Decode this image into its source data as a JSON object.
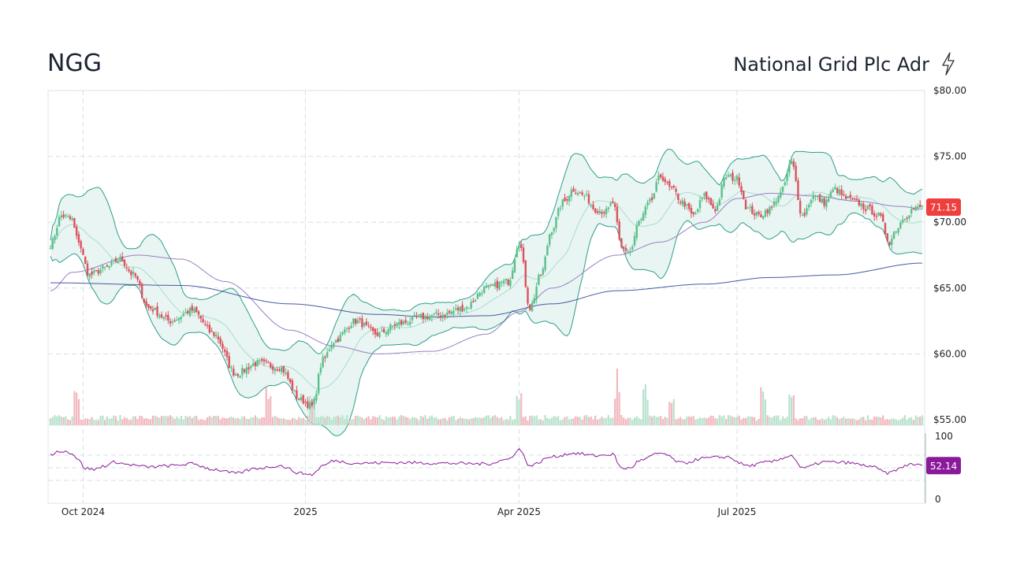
{
  "header": {
    "ticker": "NGG",
    "company": "National Grid Plc Adr",
    "icon": "lightning-bolt-icon"
  },
  "colors": {
    "up": "#5bbf8a",
    "down": "#d9525e",
    "band_fill": "#e8f5f2",
    "band_line": "#2e9e8a",
    "ma_short": "#9b7ec4",
    "ma_long": "#4a58a0",
    "rsi": "#8b1a9a",
    "price_badge": "#ef3e3e",
    "rsi_badge": "#8b1a9a"
  },
  "chart_data": {
    "type": "candlestick",
    "price_axis": {
      "ticks": [
        "$80.00",
        "$75.00",
        "$70.00",
        "$65.00",
        "$60.00",
        "$55.00"
      ],
      "values": [
        80,
        75,
        70,
        65,
        60,
        55
      ],
      "ylim": [
        55,
        80
      ]
    },
    "x_labels": [
      "Oct 2024",
      "2025",
      "Apr 2025",
      "Jul 2025"
    ],
    "last_price": "71.15",
    "rsi": {
      "ticks": [
        "100",
        "0"
      ],
      "last": "52.14",
      "ylim": [
        0,
        100
      ]
    },
    "price_anchors": [
      [
        0,
        68.3
      ],
      [
        5,
        70.5
      ],
      [
        10,
        70.2
      ],
      [
        12,
        68.8
      ],
      [
        18,
        66.0
      ],
      [
        25,
        66.5
      ],
      [
        32,
        67.2
      ],
      [
        38,
        66.0
      ],
      [
        45,
        63.5
      ],
      [
        55,
        62.5
      ],
      [
        65,
        63.3
      ],
      [
        75,
        61.5
      ],
      [
        85,
        58.5
      ],
      [
        95,
        59.3
      ],
      [
        105,
        59.0
      ],
      [
        115,
        56.5
      ],
      [
        120,
        56.0
      ],
      [
        125,
        59.5
      ],
      [
        130,
        61.0
      ],
      [
        140,
        62.5
      ],
      [
        150,
        61.5
      ],
      [
        160,
        62.3
      ],
      [
        170,
        62.8
      ],
      [
        180,
        63.0
      ],
      [
        190,
        63.5
      ],
      [
        200,
        65.0
      ],
      [
        210,
        65.5
      ],
      [
        215,
        68.5
      ],
      [
        220,
        63.5
      ],
      [
        225,
        66.0
      ],
      [
        230,
        69.5
      ],
      [
        235,
        71.5
      ],
      [
        240,
        72.5
      ],
      [
        245,
        72.0
      ],
      [
        250,
        71.0
      ],
      [
        255,
        70.8
      ],
      [
        258,
        71.5
      ],
      [
        262,
        68.0
      ],
      [
        266,
        67.8
      ],
      [
        270,
        70.0
      ],
      [
        275,
        71.5
      ],
      [
        280,
        73.5
      ],
      [
        285,
        72.5
      ],
      [
        290,
        71.5
      ],
      [
        295,
        70.5
      ],
      [
        300,
        72.0
      ],
      [
        305,
        71.0
      ],
      [
        310,
        73.5
      ],
      [
        315,
        73.3
      ],
      [
        320,
        71.0
      ],
      [
        325,
        70.5
      ],
      [
        330,
        71.0
      ],
      [
        335,
        72.2
      ],
      [
        340,
        74.5
      ],
      [
        345,
        70.5
      ],
      [
        350,
        72.0
      ],
      [
        355,
        71.5
      ],
      [
        360,
        72.5
      ],
      [
        365,
        71.8
      ],
      [
        370,
        71.5
      ],
      [
        375,
        71.0
      ],
      [
        380,
        70.5
      ],
      [
        385,
        68.5
      ],
      [
        388,
        69.5
      ],
      [
        392,
        70.5
      ],
      [
        396,
        71.0
      ],
      [
        400,
        71.15
      ]
    ],
    "rsi_anchors": [
      [
        0,
        70
      ],
      [
        5,
        76
      ],
      [
        10,
        72
      ],
      [
        12,
        64
      ],
      [
        16,
        48
      ],
      [
        20,
        46
      ],
      [
        25,
        52
      ],
      [
        30,
        58
      ],
      [
        35,
        54
      ],
      [
        45,
        50
      ],
      [
        55,
        52
      ],
      [
        65,
        55
      ],
      [
        75,
        46
      ],
      [
        85,
        40
      ],
      [
        95,
        48
      ],
      [
        105,
        52
      ],
      [
        115,
        40
      ],
      [
        120,
        38
      ],
      [
        125,
        52
      ],
      [
        130,
        60
      ],
      [
        140,
        56
      ],
      [
        160,
        57
      ],
      [
        180,
        56
      ],
      [
        200,
        55
      ],
      [
        210,
        62
      ],
      [
        215,
        78
      ],
      [
        220,
        52
      ],
      [
        230,
        66
      ],
      [
        240,
        72
      ],
      [
        250,
        68
      ],
      [
        258,
        70
      ],
      [
        262,
        48
      ],
      [
        266,
        48
      ],
      [
        270,
        60
      ],
      [
        280,
        72
      ],
      [
        290,
        56
      ],
      [
        300,
        64
      ],
      [
        310,
        66
      ],
      [
        320,
        52
      ],
      [
        330,
        58
      ],
      [
        340,
        68
      ],
      [
        345,
        48
      ],
      [
        355,
        58
      ],
      [
        365,
        57
      ],
      [
        375,
        52
      ],
      [
        385,
        40
      ],
      [
        388,
        46
      ],
      [
        395,
        55
      ],
      [
        400,
        52
      ]
    ],
    "ma_long_anchors": [
      [
        0,
        65.4
      ],
      [
        60,
        65.2
      ],
      [
        110,
        63.8
      ],
      [
        150,
        63.0
      ],
      [
        175,
        62.8
      ],
      [
        200,
        62.9
      ],
      [
        230,
        63.8
      ],
      [
        260,
        64.8
      ],
      [
        300,
        65.3
      ],
      [
        330,
        65.8
      ],
      [
        360,
        66.0
      ],
      [
        400,
        66.9
      ]
    ],
    "ma_short_anchors": [
      [
        0,
        64.8
      ],
      [
        10,
        66.2
      ],
      [
        40,
        67.5
      ],
      [
        60,
        67.2
      ],
      [
        80,
        65.5
      ],
      [
        110,
        61.8
      ],
      [
        130,
        60.6
      ],
      [
        150,
        60.0
      ],
      [
        175,
        60.2
      ],
      [
        200,
        61.5
      ],
      [
        215,
        63.2
      ],
      [
        230,
        65.0
      ],
      [
        260,
        67.5
      ],
      [
        280,
        68.5
      ],
      [
        300,
        70.0
      ],
      [
        315,
        71.8
      ],
      [
        330,
        72.2
      ],
      [
        350,
        72.0
      ],
      [
        370,
        71.6
      ],
      [
        390,
        71.2
      ],
      [
        400,
        71.0
      ]
    ]
  }
}
